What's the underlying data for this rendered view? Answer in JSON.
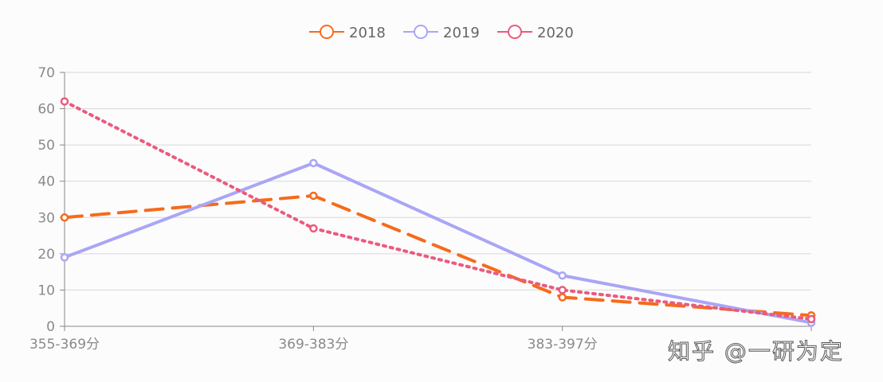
{
  "chart_data": {
    "type": "line",
    "categories": [
      "355-369分",
      "369-383分",
      "383-397分",
      ""
    ],
    "ylim": [
      0,
      70
    ],
    "yticks": [
      0,
      10,
      20,
      30,
      40,
      50,
      60,
      70
    ],
    "grid": true,
    "legend_position": "top-center",
    "series": [
      {
        "name": "2018",
        "values": [
          30,
          36,
          8,
          3
        ],
        "color": "#f56b1c",
        "style": "dashed"
      },
      {
        "name": "2019",
        "values": [
          19,
          45,
          14,
          1
        ],
        "color": "#a9a6f5",
        "style": "solid"
      },
      {
        "name": "2020",
        "values": [
          62,
          27,
          10,
          2
        ],
        "color": "#ea5b7e",
        "style": "dotted"
      }
    ]
  },
  "watermark": "知乎 @一研为定"
}
